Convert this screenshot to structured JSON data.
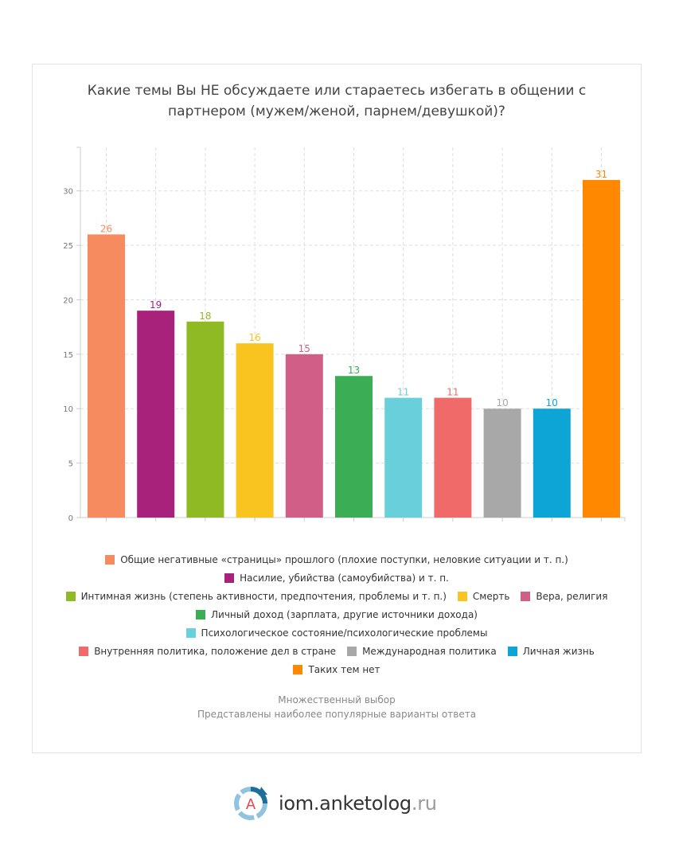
{
  "chart_data": {
    "type": "bar",
    "title_lines": [
      "Какие темы Вы НЕ обсуждаете или стараетесь избегать в общении с",
      "партнером (мужем/женой, парнем/девушкой)?"
    ],
    "categories": [
      "Общие негативные «страницы» прошлого (плохие поступки, неловкие ситуации и т. п.)",
      "Насилие, убийства (самоубийства) и т. п.",
      "Интимная жизнь (степень активности, предпочтения, проблемы и т. п.)",
      "Смерть",
      "Вера, религия",
      "Личный доход (зарплата, другие источники дохода)",
      "Психологическое состояние/психологические проблемы",
      "Внутренняя политика, положение дел в стране",
      "Международная политика",
      "Личная жизнь",
      "Таких тем нет"
    ],
    "values": [
      26,
      19,
      18,
      16,
      15,
      13,
      11,
      11,
      10,
      10,
      31
    ],
    "colors": [
      "#f58b5f",
      "#a8217a",
      "#8fba23",
      "#f9c41f",
      "#d05e86",
      "#3aad55",
      "#69cfda",
      "#f06a6a",
      "#a8a8a8",
      "#0da4d6",
      "#ff8800"
    ],
    "yticks": [
      0,
      5,
      10,
      15,
      20,
      25,
      30
    ],
    "ylim": [
      0,
      34
    ],
    "grid": true,
    "legend_position": "bottom"
  },
  "legend_rows": [
    [
      0
    ],
    [
      1
    ],
    [
      2,
      3,
      4
    ],
    [
      5
    ],
    [
      6
    ],
    [
      7,
      8,
      9
    ],
    [
      10
    ]
  ],
  "notes": [
    "Множественный выбор",
    "Представлены наиболее популярные варианты ответа"
  ],
  "brand": {
    "name": "iom.anketolog",
    "tld": ".ru",
    "letter": "A"
  }
}
